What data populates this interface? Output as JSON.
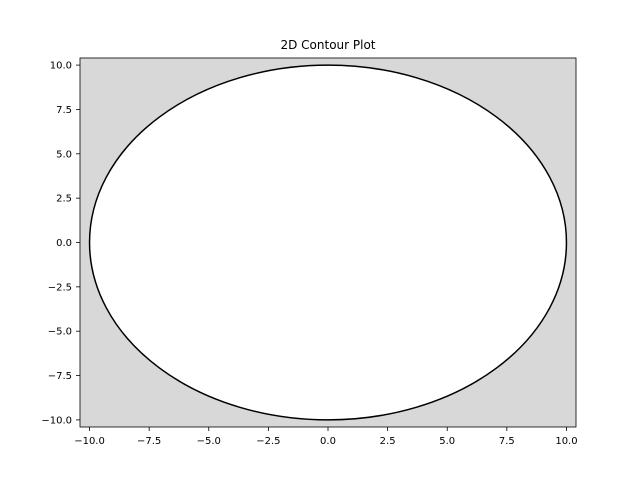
{
  "chart_data": {
    "type": "contour",
    "title": "2D Contour Plot",
    "xlabel": "",
    "ylabel": "",
    "xlim": [
      -10.4,
      10.4
    ],
    "ylim": [
      -10.4,
      10.4
    ],
    "x_ticks": [
      -10.0,
      -7.5,
      -5.0,
      -2.5,
      0.0,
      2.5,
      5.0,
      7.5,
      10.0
    ],
    "x_tick_labels": [
      "−10.0",
      "−7.5",
      "−5.0",
      "−2.5",
      "0.0",
      "2.5",
      "5.0",
      "7.5",
      "10.0"
    ],
    "y_ticks": [
      10.0,
      7.5,
      5.0,
      2.5,
      0.0,
      -2.5,
      -5.0,
      -7.5,
      -10.0
    ],
    "y_tick_labels": [
      "10.0",
      "7.5",
      "5.0",
      "2.5",
      "0.0",
      "−2.5",
      "−5.0",
      "−7.5",
      "−10.0"
    ],
    "contours": [
      {
        "shape": "circle",
        "center": [
          0,
          0
        ],
        "radius": 10,
        "color": "#000000"
      }
    ],
    "inside_fill": "#ffffff",
    "outside_fill": "#d8d8d8",
    "grid": false
  }
}
